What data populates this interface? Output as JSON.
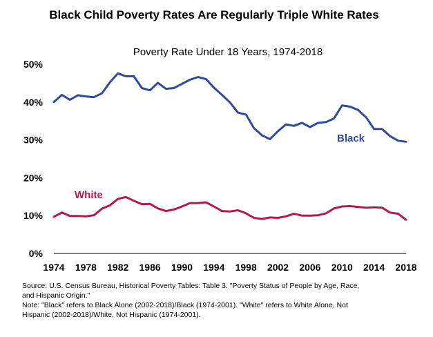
{
  "chart_data": {
    "type": "line",
    "title": "Black Child Poverty Rates Are Regularly Triple White Rates",
    "subtitle": "Poverty Rate Under 18 Years, 1974-2018",
    "xlabel": "",
    "ylabel": "",
    "ylim": [
      0,
      50
    ],
    "xlim": [
      1974,
      2018
    ],
    "y_ticks": [
      "0%",
      "10%",
      "20%",
      "30%",
      "40%",
      "50%"
    ],
    "x_ticks": [
      "1974",
      "1978",
      "1982",
      "1986",
      "1990",
      "1994",
      "1998",
      "2002",
      "2006",
      "2010",
      "2014",
      "2018"
    ],
    "x": [
      1974,
      1975,
      1976,
      1977,
      1978,
      1979,
      1980,
      1981,
      1982,
      1983,
      1984,
      1985,
      1986,
      1987,
      1988,
      1989,
      1990,
      1991,
      1992,
      1993,
      1994,
      1995,
      1996,
      1997,
      1998,
      1999,
      2000,
      2001,
      2002,
      2003,
      2004,
      2005,
      2006,
      2007,
      2008,
      2009,
      2010,
      2011,
      2012,
      2013,
      2014,
      2015,
      2016,
      2017,
      2018
    ],
    "series": [
      {
        "name": "Black",
        "label": "Black",
        "color": "#2E4A9E",
        "values": [
          40.0,
          41.9,
          40.6,
          41.8,
          41.5,
          41.3,
          42.3,
          45.2,
          47.6,
          46.8,
          46.8,
          43.7,
          43.1,
          45.1,
          43.5,
          43.7,
          44.8,
          45.9,
          46.6,
          46.1,
          43.8,
          41.9,
          39.9,
          37.2,
          36.7,
          33.1,
          31.2,
          30.2,
          32.3,
          34.1,
          33.7,
          34.5,
          33.4,
          34.5,
          34.7,
          35.7,
          39.1,
          38.8,
          37.9,
          36.0,
          32.9,
          32.9,
          31.0,
          29.8,
          29.5
        ]
      },
      {
        "name": "White",
        "label": "White",
        "color": "#B5174E",
        "values": [
          9.7,
          10.8,
          9.9,
          9.9,
          9.8,
          10.1,
          11.8,
          12.7,
          14.4,
          14.9,
          13.9,
          13.0,
          13.1,
          11.9,
          11.2,
          11.6,
          12.4,
          13.3,
          13.3,
          13.5,
          12.4,
          11.2,
          11.1,
          11.4,
          10.6,
          9.4,
          9.1,
          9.5,
          9.4,
          9.8,
          10.5,
          10.0,
          10.0,
          10.1,
          10.6,
          11.9,
          12.4,
          12.5,
          12.3,
          12.1,
          12.2,
          12.1,
          10.8,
          10.5,
          8.9
        ]
      }
    ]
  },
  "notes": {
    "source_line1": "Source: U.S. Census Bureau, Historical Poverty Tables: Table 3. \"Poverty Status of People by Age, Race,",
    "source_line2": "and Hispanic Origin.\"",
    "note_line1": "Note:  \"Black\" refers to Black Alone (2002-2018)/Black (1974-2001). \"White\" refers to White Alone, Not",
    "note_line2": "Hispanic (2002-2018)/White, Not Hispanic (1974-2001)."
  }
}
